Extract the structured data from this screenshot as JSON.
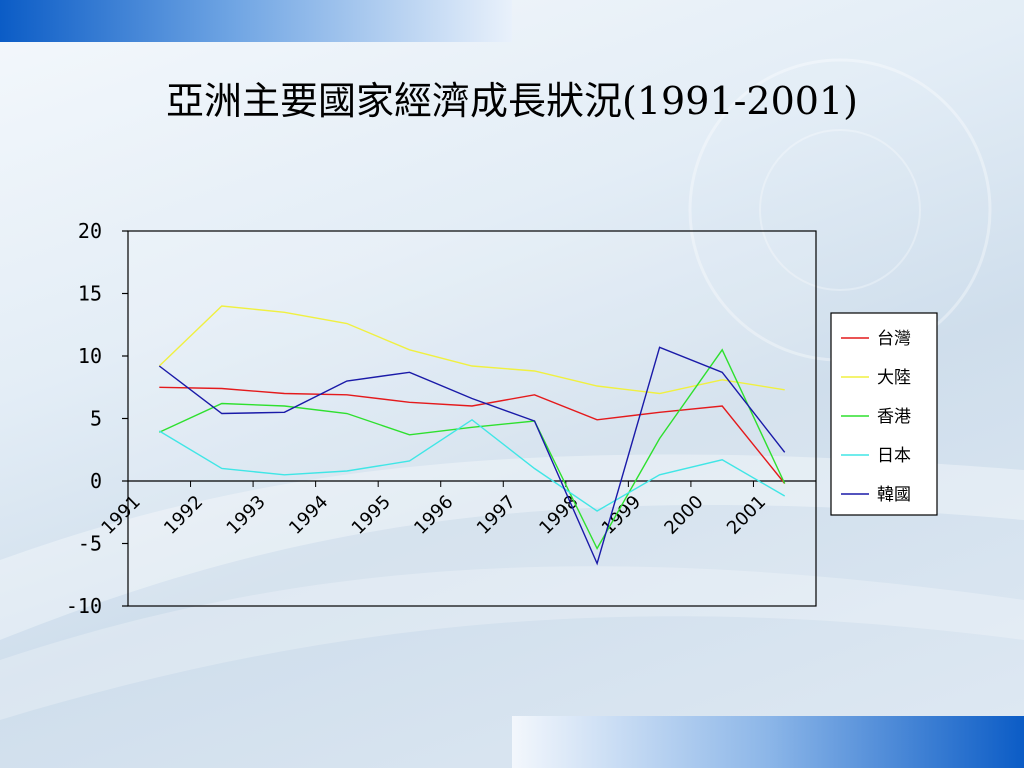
{
  "slide": {
    "title": "亞洲主要國家經濟成長狀況(1991-2001)"
  },
  "colors": {
    "top_bar": "#0b5cc6",
    "bottom_bar": "#0b5cc6"
  },
  "chart_data": {
    "type": "line",
    "x": [
      "1991",
      "1992",
      "1993",
      "1994",
      "1995",
      "1996",
      "1997",
      "1998",
      "1999",
      "2000",
      "2001"
    ],
    "ylim": [
      -10,
      20
    ],
    "yticks": [
      -10,
      -5,
      0,
      5,
      10,
      15,
      20
    ],
    "grid": false,
    "legend_position": "right",
    "series": [
      {
        "name": "台灣",
        "color": "#e41a1c",
        "values": [
          7.5,
          7.4,
          7.0,
          6.9,
          6.3,
          6.0,
          6.9,
          4.9,
          5.5,
          6.0,
          -0.2
        ]
      },
      {
        "name": "大陸",
        "color": "#f0f040",
        "values": [
          9.2,
          14.0,
          13.5,
          12.6,
          10.5,
          9.2,
          8.8,
          7.6,
          7.0,
          8.1,
          7.3
        ]
      },
      {
        "name": "香港",
        "color": "#2ee02e",
        "values": [
          3.9,
          6.2,
          6.0,
          5.4,
          3.7,
          4.3,
          4.8,
          -5.4,
          3.4,
          10.5,
          -0.2
        ]
      },
      {
        "name": "日本",
        "color": "#40e6e6",
        "values": [
          4.0,
          1.0,
          0.5,
          0.8,
          1.6,
          4.9,
          1.0,
          -2.4,
          0.5,
          1.7,
          -1.2
        ]
      },
      {
        "name": "韓國",
        "color": "#1a1aa8",
        "values": [
          9.2,
          5.4,
          5.5,
          8.0,
          8.7,
          6.6,
          4.8,
          -6.6,
          10.7,
          8.7,
          2.3
        ]
      }
    ]
  }
}
